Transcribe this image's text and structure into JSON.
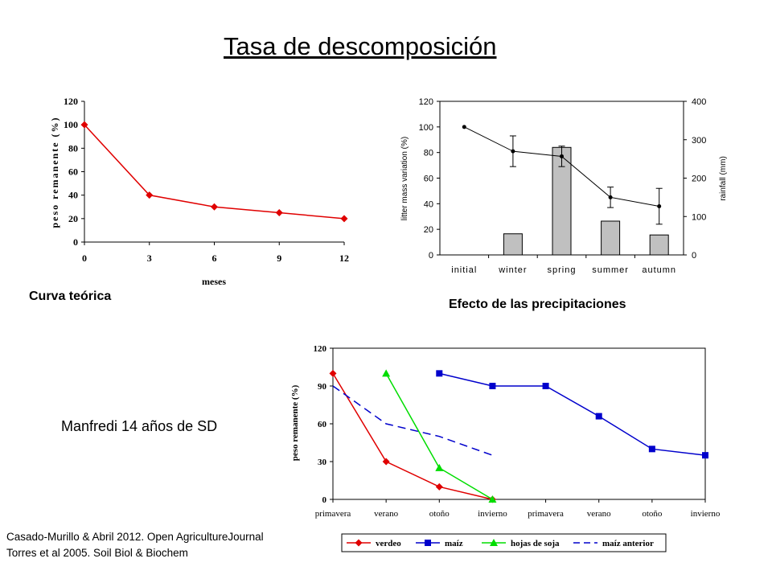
{
  "title": "Tasa de descomposición",
  "labels": {
    "curva": "Curva teórica",
    "efecto": "Efecto de las precipitaciones",
    "manfredi": "Manfredi 14 años de SD",
    "ref1": "Casado-Murillo & Abril 2012. Open AgricultureJournal",
    "ref2": "Torres et al 2005. Soil Biol & Biochem"
  },
  "chart_data": [
    {
      "type": "line",
      "x": [
        0,
        3,
        6,
        9,
        12
      ],
      "series": [
        {
          "values": [
            100,
            40,
            30,
            25,
            20
          ],
          "color": "#e00000"
        }
      ],
      "xlabel": "meses",
      "ylabel": "peso remanente (%)",
      "xticks": [
        0,
        3,
        6,
        9,
        12
      ],
      "yticks": [
        0,
        20,
        40,
        60,
        80,
        100,
        120
      ],
      "xlim": [
        0,
        12
      ],
      "ylim": [
        0,
        120
      ],
      "grid": false
    },
    {
      "type": "bar",
      "categories": [
        "initial",
        "winter",
        "spring",
        "summer",
        "autumn"
      ],
      "series": [
        {
          "type": "bar",
          "axis": "right",
          "values": [
            null,
            55,
            280,
            88,
            52
          ],
          "color": "#c0c0c0"
        },
        {
          "type": "line",
          "axis": "left",
          "values": [
            100,
            81,
            77,
            45,
            38
          ],
          "error": [
            0,
            12,
            8,
            8,
            14
          ],
          "color": "#000000"
        }
      ],
      "ylabel": "litter mass variation (%)",
      "y2label": "rainfall (mm)",
      "yticks": [
        0,
        20,
        40,
        60,
        80,
        100,
        120
      ],
      "y2ticks": [
        0,
        100,
        200,
        300,
        400
      ],
      "ylim": [
        0,
        120
      ],
      "y2lim": [
        0,
        400
      ]
    },
    {
      "type": "line",
      "categories": [
        "primavera",
        "verano",
        "otoño",
        "invierno",
        "primavera",
        "verano",
        "otoño",
        "invierno"
      ],
      "series": [
        {
          "name": "verdeo",
          "values": [
            100,
            30,
            10,
            0,
            null,
            null,
            null,
            null
          ],
          "color": "#e00000",
          "marker": "diamond"
        },
        {
          "name": "maíz",
          "values": [
            null,
            null,
            100,
            90,
            90,
            66,
            40,
            35
          ],
          "color": "#0000cc",
          "marker": "square"
        },
        {
          "name": "hojas de soja",
          "values": [
            null,
            100,
            25,
            0,
            null,
            null,
            null,
            null
          ],
          "color": "#00dd00",
          "marker": "triangle"
        },
        {
          "name": "maíz anterior",
          "values": [
            90,
            60,
            50,
            35,
            null,
            null,
            null,
            null
          ],
          "color": "#0000cc",
          "dashed": true
        }
      ],
      "ylabel": "peso remanente (%)",
      "yticks": [
        0,
        30,
        60,
        90,
        120
      ],
      "ylim": [
        0,
        120
      ],
      "legend": "bottom"
    }
  ]
}
